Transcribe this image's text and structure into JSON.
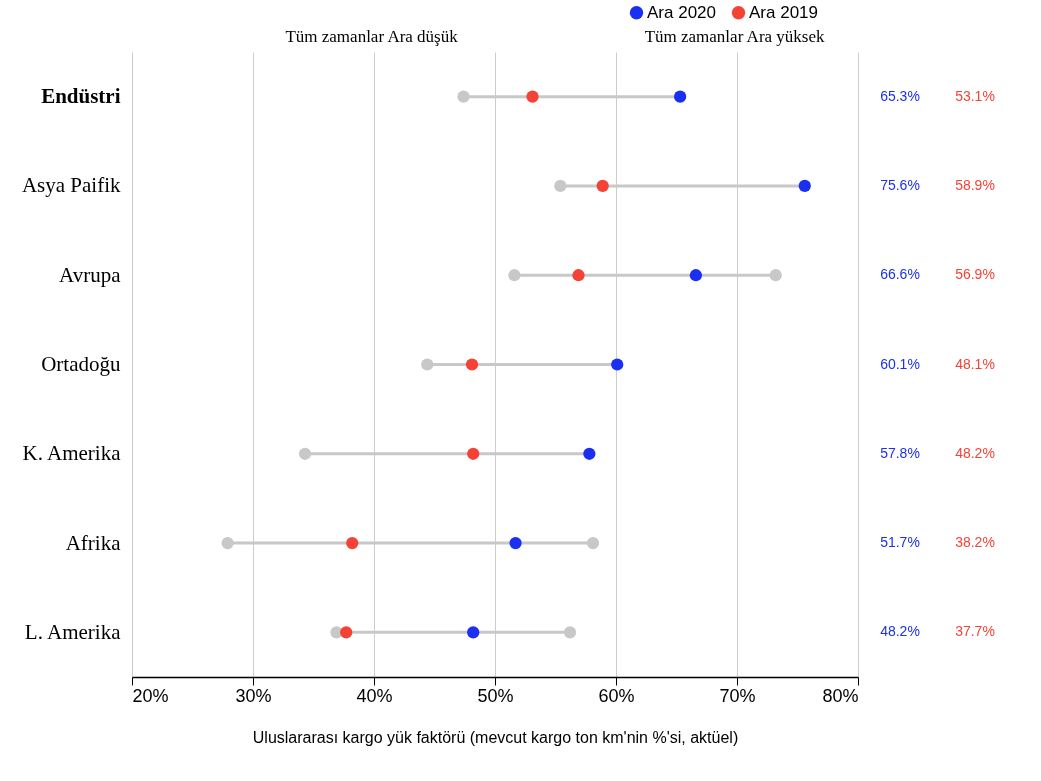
{
  "chart_data": {
    "type": "scatter",
    "orientation": "horizontal",
    "xlabel": "Uluslararası kargo yük faktörü (mevcut kargo ton km'nin %'si, aktüel)",
    "categories": [
      "Endüstri",
      "Asya Paifik",
      "Avrupa",
      "Ortadoğu",
      "K. Amerika",
      "Afrika",
      "L. Amerika"
    ],
    "xlim": [
      20,
      80
    ],
    "xticks": [
      {
        "value": 20,
        "label": "20%"
      },
      {
        "value": 30,
        "label": "30%"
      },
      {
        "value": 40,
        "label": "40%"
      },
      {
        "value": 50,
        "label": "50%"
      },
      {
        "value": 60,
        "label": "60%"
      },
      {
        "value": 70,
        "label": "70%"
      },
      {
        "value": 80,
        "label": "80%"
      }
    ],
    "grid": "x",
    "legend": "top right",
    "marker": "circle",
    "annotations": [
      "Tüm zamanlar Ara düşük",
      "Tüm zamanlar Ara yüksek"
    ],
    "series": [
      {
        "color": "#c8c8c8",
        "values": [
          47.4,
          55.4,
          51.6,
          44.4,
          34.3,
          27.9,
          36.9
        ]
      },
      {
        "color": "#c8c8c8",
        "values": [
          null,
          null,
          73.2,
          null,
          null,
          58.1,
          56.2
        ]
      },
      {
        "name": "Ara 2020",
        "color": "#1a2ff0",
        "values": [
          65.3,
          75.6,
          66.6,
          60.1,
          57.8,
          51.7,
          48.2
        ],
        "value_labels": [
          "65.3%",
          "75.6%",
          "66.6%",
          "60.1%",
          "57.8%",
          "51.7%",
          "48.2%"
        ]
      },
      {
        "name": "Ara 2019",
        "color": "#f44336",
        "values": [
          53.1,
          58.9,
          56.9,
          48.1,
          48.2,
          38.2,
          37.7
        ],
        "value_labels": [
          "53.1%",
          "58.9%",
          "56.9%",
          "48.1%",
          "48.2%",
          "38.2%",
          "37.7%"
        ]
      }
    ]
  }
}
